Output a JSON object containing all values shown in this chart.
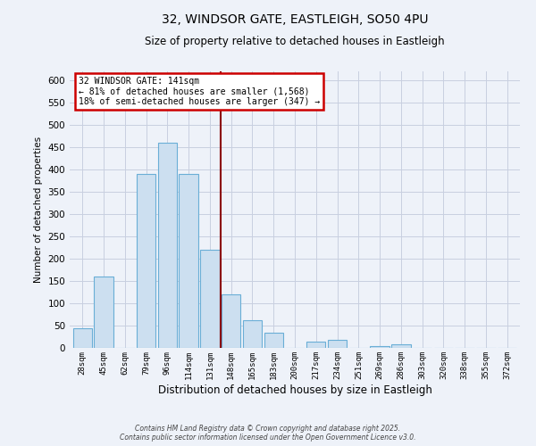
{
  "title": "32, WINDSOR GATE, EASTLEIGH, SO50 4PU",
  "subtitle": "Size of property relative to detached houses in Eastleigh",
  "xlabel": "Distribution of detached houses by size in Eastleigh",
  "ylabel": "Number of detached properties",
  "bar_labels": [
    "28sqm",
    "45sqm",
    "62sqm",
    "79sqm",
    "96sqm",
    "114sqm",
    "131sqm",
    "148sqm",
    "165sqm",
    "183sqm",
    "200sqm",
    "217sqm",
    "234sqm",
    "251sqm",
    "269sqm",
    "286sqm",
    "303sqm",
    "320sqm",
    "338sqm",
    "355sqm",
    "372sqm"
  ],
  "bar_values": [
    45,
    160,
    0,
    390,
    460,
    390,
    220,
    120,
    63,
    35,
    0,
    15,
    18,
    0,
    5,
    8,
    0,
    0,
    0,
    0,
    0
  ],
  "bar_color": "#ccdff0",
  "bar_edge_color": "#6aaed6",
  "marker_line_color": "#8b0000",
  "annotation_line1": "32 WINDSOR GATE: 141sqm",
  "annotation_line2": "← 81% of detached houses are smaller (1,568)",
  "annotation_line3": "18% of semi-detached houses are larger (347) →",
  "annotation_box_color": "#ffffff",
  "annotation_border_color": "#cc0000",
  "ylim": [
    0,
    620
  ],
  "yticks": [
    0,
    50,
    100,
    150,
    200,
    250,
    300,
    350,
    400,
    450,
    500,
    550,
    600
  ],
  "footer_line1": "Contains HM Land Registry data © Crown copyright and database right 2025.",
  "footer_line2": "Contains public sector information licensed under the Open Government Licence v3.0.",
  "bg_color": "#eef2f9",
  "grid_color": "#c8cfe0"
}
